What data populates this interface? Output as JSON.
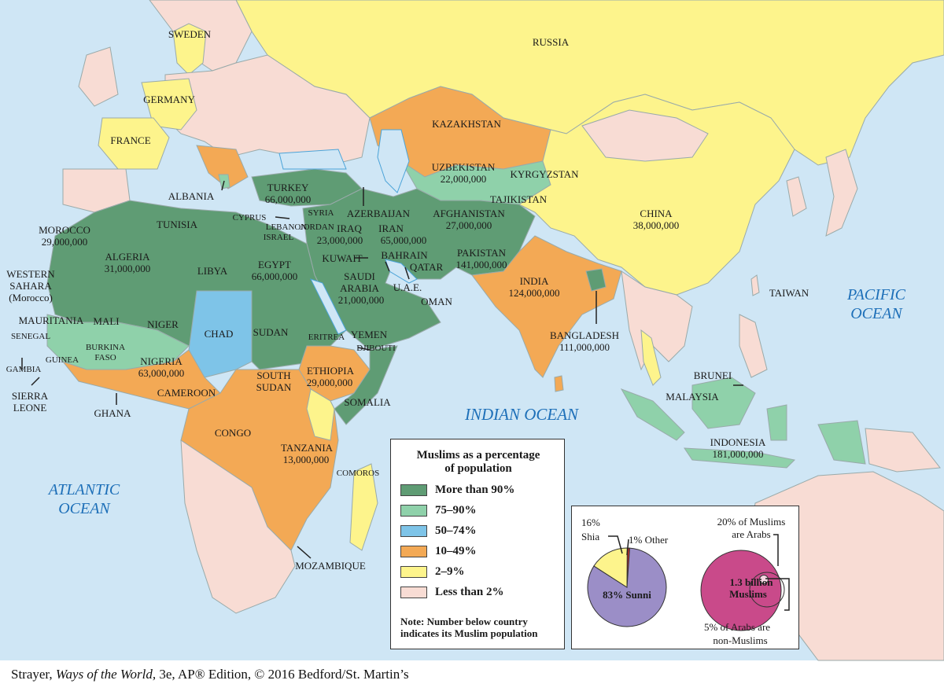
{
  "legend": {
    "title_line1": "Muslims as a percentage",
    "title_line2": "of population",
    "items": [
      {
        "label": "More than 90%",
        "color": "#5f9c74"
      },
      {
        "label": "75–90%",
        "color": "#8fd1aa"
      },
      {
        "label": "50–74%",
        "color": "#7ec4e8"
      },
      {
        "label": "10–49%",
        "color": "#f3a955"
      },
      {
        "label": "2–9%",
        "color": "#fdf48c"
      },
      {
        "label": "Less than 2%",
        "color": "#f8dcd4"
      }
    ],
    "note_line1": "Note: Number below country",
    "note_line2": "indicates its Muslim population"
  },
  "oceans": {
    "atlantic_1": "ATLANTIC",
    "atlantic_2": "OCEAN",
    "indian": "INDIAN OCEAN",
    "pacific_1": "PACIFIC",
    "pacific_2": "OCEAN"
  },
  "countries": {
    "sweden": "SWEDEN",
    "russia": "RUSSIA",
    "germany": "GERMANY",
    "france": "FRANCE",
    "kazakhstan": "KAZAKHSTAN",
    "uzbekistan": "UZBEKISTAN",
    "uzbekistan_pop": "22,000,000",
    "kyrgyzstan": "KYRGYZSTAN",
    "tajikistan": "TAJIKISTAN",
    "albania": "ALBANIA",
    "turkey": "TURKEY",
    "turkey_pop": "66,000,000",
    "cyprus": "CYPRUS",
    "syria": "SYRIA",
    "lebanon": "LEBANON",
    "israel": "ISRAEL",
    "jordan": "JORDAN",
    "azerbaijan": "AZERBAIJAN",
    "afghanistan": "AFGHANISTAN",
    "afghanistan_pop": "27,000,000",
    "iraq": "IRAQ",
    "iraq_pop": "23,000,000",
    "iran": "IRAN",
    "iran_pop": "65,000,000",
    "china": "CHINA",
    "china_pop": "38,000,000",
    "morocco": "MOROCCO",
    "morocco_pop": "29,000,000",
    "tunisia": "TUNISIA",
    "algeria": "ALGERIA",
    "algeria_pop": "31,000,000",
    "libya": "LIBYA",
    "egypt": "EGYPT",
    "egypt_pop": "66,000,000",
    "kuwait": "KUWAIT",
    "bahrain": "BAHRAIN",
    "qatar": "QATAR",
    "uae": "U.A.E.",
    "pakistan": "PAKISTAN",
    "pakistan_pop": "141,000,000",
    "western_sahara_1": "WESTERN",
    "western_sahara_2": "SAHARA",
    "western_sahara_3": "(Morocco)",
    "saudi_1": "SAUDI",
    "saudi_2": "ARABIA",
    "saudi_pop": "21,000,000",
    "india": "INDIA",
    "india_pop": "124,000,000",
    "oman": "OMAN",
    "taiwan": "TAIWAN",
    "mauritania": "MAURITANIA",
    "mali": "MALI",
    "niger": "NIGER",
    "chad": "CHAD",
    "sudan": "SUDAN",
    "eritrea": "ERITREA",
    "yemen": "YEMEN",
    "djibouti": "DJIBOUTI",
    "senegal": "SENEGAL",
    "gambia": "GAMBIA",
    "guinea": "GUINEA",
    "burkina_1": "BURKINA",
    "burkina_2": "FASO",
    "nigeria": "NIGERIA",
    "nigeria_pop": "63,000,000",
    "bangladesh": "BANGLADESH",
    "bangladesh_pop": "111,000,000",
    "brunei": "BRUNEI",
    "south_sudan_1": "SOUTH",
    "south_sudan_2": "SUDAN",
    "ethiopia": "ETHIOPIA",
    "ethiopia_pop": "29,000,000",
    "sierra_1": "SIERRA",
    "sierra_2": "LEONE",
    "ghana": "GHANA",
    "cameroon": "CAMEROON",
    "somalia": "SOMALIA",
    "malaysia": "MALAYSIA",
    "congo": "CONGO",
    "tanzania": "TANZANIA",
    "tanzania_pop": "13,000,000",
    "indonesia": "INDONESIA",
    "indonesia_pop": "181,000,000",
    "comoros": "COMOROS",
    "mozambique": "MOZAMBIQUE"
  },
  "inset": {
    "shia_pct": "16%",
    "shia": "Shia",
    "other": "1% Other",
    "sunni": "83% Sunni",
    "shares": {
      "sunni": 83,
      "shia": 16,
      "other": 1
    },
    "arabs_1": "20% of Muslims",
    "arabs_2": "are Arabs",
    "total_1": "1.3 billion",
    "total_2": "Muslims",
    "nonmuslim_1": "5% of Arabs are",
    "nonmuslim_2": "non-Muslims",
    "colors": {
      "sunni": "#9b8ec7",
      "shia": "#fdf48c",
      "other": "#c0282b",
      "muslims": "#c94a8a"
    }
  },
  "footer": {
    "author": "Strayer, ",
    "title": "Ways of the World,",
    "edition": " 3e, AP® Edition, © 2016 Bedford/St. Martin’s"
  }
}
